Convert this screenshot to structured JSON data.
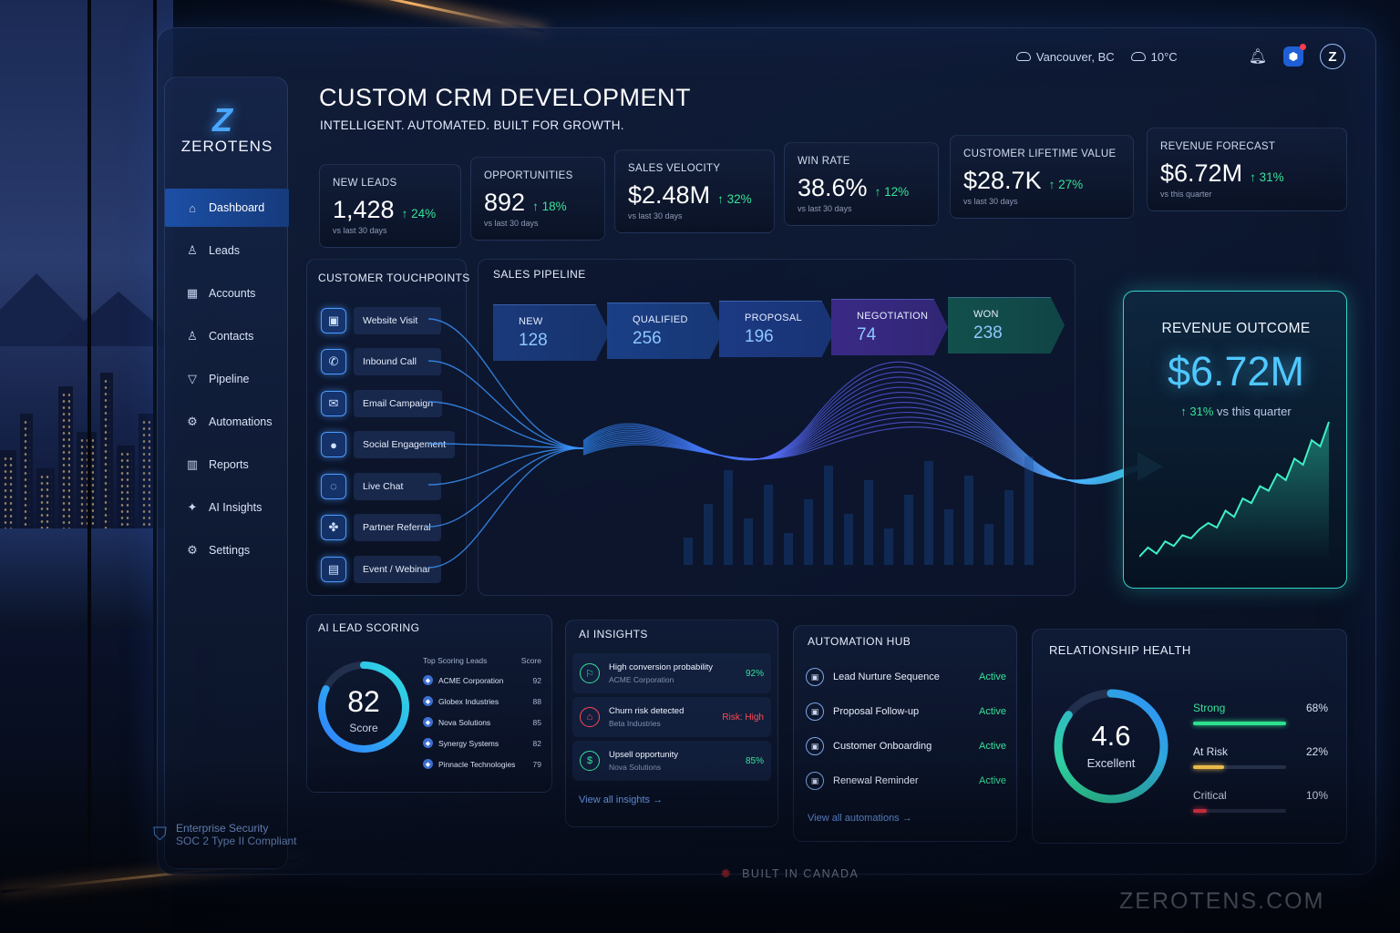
{
  "brand": {
    "logo_mark": "Z",
    "name": "ZEROTENS",
    "website": "ZEROTENS.COM"
  },
  "topbar": {
    "location": "Vancouver, BC",
    "temperature": "10°C",
    "location_icon": "cloud-icon",
    "weather_icon": "cloud-icon",
    "notifications_icon": "bell-icon",
    "app_icon": "cube-icon",
    "avatar_letter": "Z"
  },
  "sidebar": {
    "items": [
      {
        "label": "Dashboard",
        "icon": "home-icon",
        "glyph": "⌂",
        "active": true
      },
      {
        "label": "Leads",
        "icon": "user-icon",
        "glyph": "♙",
        "active": false
      },
      {
        "label": "Accounts",
        "icon": "building-icon",
        "glyph": "▦",
        "active": false
      },
      {
        "label": "Contacts",
        "icon": "contact-icon",
        "glyph": "♙",
        "active": false
      },
      {
        "label": "Pipeline",
        "icon": "funnel-icon",
        "glyph": "▽",
        "active": false
      },
      {
        "label": "Automations",
        "icon": "gears-icon",
        "glyph": "⚙",
        "active": false
      },
      {
        "label": "Reports",
        "icon": "bar-chart-icon",
        "glyph": "▥",
        "active": false
      },
      {
        "label": "AI Insights",
        "icon": "sparkle-icon",
        "glyph": "✦",
        "active": false
      },
      {
        "label": "Settings",
        "icon": "gear-icon",
        "glyph": "⚙",
        "active": false
      }
    ],
    "security": {
      "line1": "Enterprise Security",
      "line2": "SOC 2 Type II Compliant",
      "icon": "shield-icon"
    }
  },
  "header": {
    "title": "CUSTOM CRM DEVELOPMENT",
    "subtitle": "INTELLIGENT. AUTOMATED. BUILT FOR GROWTH."
  },
  "kpis": [
    {
      "label": "NEW LEADS",
      "value": "1,428",
      "change": "↑ 24%",
      "note": "vs last 30 days"
    },
    {
      "label": "OPPORTUNITIES",
      "value": "892",
      "change": "↑ 18%",
      "note": "vs last 30 days"
    },
    {
      "label": "SALES VELOCITY",
      "value": "$2.48M",
      "change": "↑ 32%",
      "note": "vs last 30 days"
    },
    {
      "label": "WIN RATE",
      "value": "38.6%",
      "change": "↑ 12%",
      "note": "vs last 30 days"
    },
    {
      "label": "CUSTOMER LIFETIME VALUE",
      "value": "$28.7K",
      "change": "↑ 27%",
      "note": "vs last 30 days"
    },
    {
      "label": "REVENUE FORECAST",
      "value": "$6.72M",
      "change": "↑ 31%",
      "note": "vs this quarter"
    }
  ],
  "touchpoints": {
    "title": "CUSTOMER TOUCHPOINTS",
    "items": [
      {
        "label": "Website Visit",
        "icon": "browser-icon",
        "glyph": "▣"
      },
      {
        "label": "Inbound Call",
        "icon": "phone-icon",
        "glyph": "✆"
      },
      {
        "label": "Email Campaign",
        "icon": "mail-icon",
        "glyph": "✉"
      },
      {
        "label": "Social Engagement",
        "icon": "chat-bubble-icon",
        "glyph": "●"
      },
      {
        "label": "Live Chat",
        "icon": "chat-icon",
        "glyph": "◌"
      },
      {
        "label": "Partner Referral",
        "icon": "handshake-icon",
        "glyph": "✤"
      },
      {
        "label": "Event / Webinar",
        "icon": "presentation-icon",
        "glyph": "▤"
      }
    ]
  },
  "pipeline": {
    "title": "SALES PIPELINE",
    "stages": [
      {
        "name": "NEW",
        "count": "128",
        "color": "#1a3a7c"
      },
      {
        "name": "QUALIFIED",
        "count": "256",
        "color": "#1a3f86"
      },
      {
        "name": "PROPOSAL",
        "count": "196",
        "color": "#1c3a84"
      },
      {
        "name": "NEGOTIATION",
        "count": "74",
        "color": "#3a2a86"
      },
      {
        "name": "WON",
        "count": "238",
        "color": "#12504c"
      }
    ]
  },
  "revenue_outcome": {
    "title": "REVENUE OUTCOME",
    "value": "$6.72M",
    "change": "↑ 31%",
    "note": "vs this quarter",
    "trend": [
      12,
      18,
      14,
      22,
      19,
      26,
      24,
      30,
      34,
      31,
      42,
      38,
      50,
      47,
      58,
      55,
      66,
      62,
      76,
      72,
      88,
      84,
      100
    ]
  },
  "lead_scoring": {
    "title": "AI LEAD SCORING",
    "score": "82",
    "score_label": "Score",
    "score_fraction": 0.82,
    "list_header": "Top Scoring Leads",
    "score_header": "Score",
    "leads": [
      {
        "name": "ACME Corporation",
        "score": "92"
      },
      {
        "name": "Globex Industries",
        "score": "88"
      },
      {
        "name": "Nova Solutions",
        "score": "85"
      },
      {
        "name": "Synergy Systems",
        "score": "82"
      },
      {
        "name": "Pinnacle Technologies",
        "score": "79"
      }
    ]
  },
  "ai_insights": {
    "title": "AI INSIGHTS",
    "items": [
      {
        "title": "High conversion probability",
        "sub": "ACME Corporation",
        "value": "92%",
        "color": "#37e29a",
        "icon": "target-icon",
        "glyph": "⚐"
      },
      {
        "title": "Churn risk detected",
        "sub": "Beta Industries",
        "value": "Risk: High",
        "color": "#ff4a55",
        "icon": "lock-icon",
        "glyph": "⌂"
      },
      {
        "title": "Upsell opportunity",
        "sub": "Nova Solutions",
        "value": "85%",
        "color": "#37e29a",
        "icon": "dollar-icon",
        "glyph": "$"
      }
    ],
    "link": "View all insights →"
  },
  "automation_hub": {
    "title": "AUTOMATION HUB",
    "items": [
      {
        "name": "Lead Nurture Sequence",
        "status": "Active"
      },
      {
        "name": "Proposal Follow-up",
        "status": "Active"
      },
      {
        "name": "Customer Onboarding",
        "status": "Active"
      },
      {
        "name": "Renewal Reminder",
        "status": "Active"
      }
    ],
    "link": "View all automations →"
  },
  "relationship_health": {
    "title": "RELATIONSHIP HEALTH",
    "score": "4.6",
    "score_label": "Excellent",
    "score_fraction": 0.85,
    "bars": [
      {
        "label": "Strong",
        "value": "68%",
        "fraction": 0.68,
        "color": "#2fe08f",
        "label_color": "#37e29a"
      },
      {
        "label": "At Risk",
        "value": "22%",
        "fraction": 0.22,
        "color": "#f2c14a",
        "label_color": "#d6e1f4"
      },
      {
        "label": "Critical",
        "value": "10%",
        "fraction": 0.1,
        "color": "#ff3b4d",
        "label_color": "#d6e1f4"
      }
    ]
  },
  "footer": {
    "built": "BUILT IN CANADA",
    "leaf_icon": "maple-leaf-icon"
  },
  "colors": {
    "accent": "#4fc8ff",
    "positive": "#37e29a",
    "negative": "#ff4a55",
    "teal": "#33d2c9"
  }
}
